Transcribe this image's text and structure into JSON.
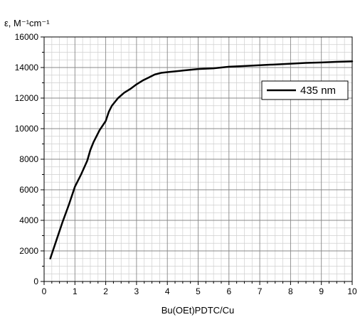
{
  "chart_data": {
    "type": "line",
    "ylabel": "ε, M⁻¹cm⁻¹",
    "xlabel": "Bu(OEt)PDTC/Cu",
    "xlim": [
      0,
      10
    ],
    "ylim": [
      0,
      16000
    ],
    "x_ticks": [
      "0",
      "1",
      "2",
      "3",
      "4",
      "5",
      "6",
      "7",
      "8",
      "9",
      "10"
    ],
    "y_ticks": [
      "0",
      "2000",
      "4000",
      "6000",
      "8000",
      "10000",
      "12000",
      "14000",
      "16000"
    ],
    "grid": true,
    "legend_position": "top-right",
    "series": [
      {
        "name": "435 nm",
        "color": "#000000",
        "x": [
          0.2,
          0.4,
          0.6,
          0.8,
          1.0,
          1.2,
          1.4,
          1.5,
          1.6,
          1.8,
          2.0,
          2.1,
          2.2,
          2.4,
          2.6,
          2.8,
          3.0,
          3.2,
          3.4,
          3.6,
          3.8,
          4.0,
          4.5,
          5.0,
          5.5,
          6.0,
          6.5,
          7.0,
          7.5,
          8.0,
          8.5,
          9.0,
          9.5,
          10.0
        ],
        "y": [
          1500,
          2700,
          3900,
          5000,
          6200,
          7000,
          7900,
          8600,
          9100,
          9900,
          10500,
          11100,
          11500,
          12000,
          12350,
          12600,
          12900,
          13150,
          13350,
          13550,
          13650,
          13700,
          13800,
          13900,
          13950,
          14050,
          14100,
          14150,
          14200,
          14250,
          14300,
          14330,
          14370,
          14400
        ]
      }
    ]
  }
}
